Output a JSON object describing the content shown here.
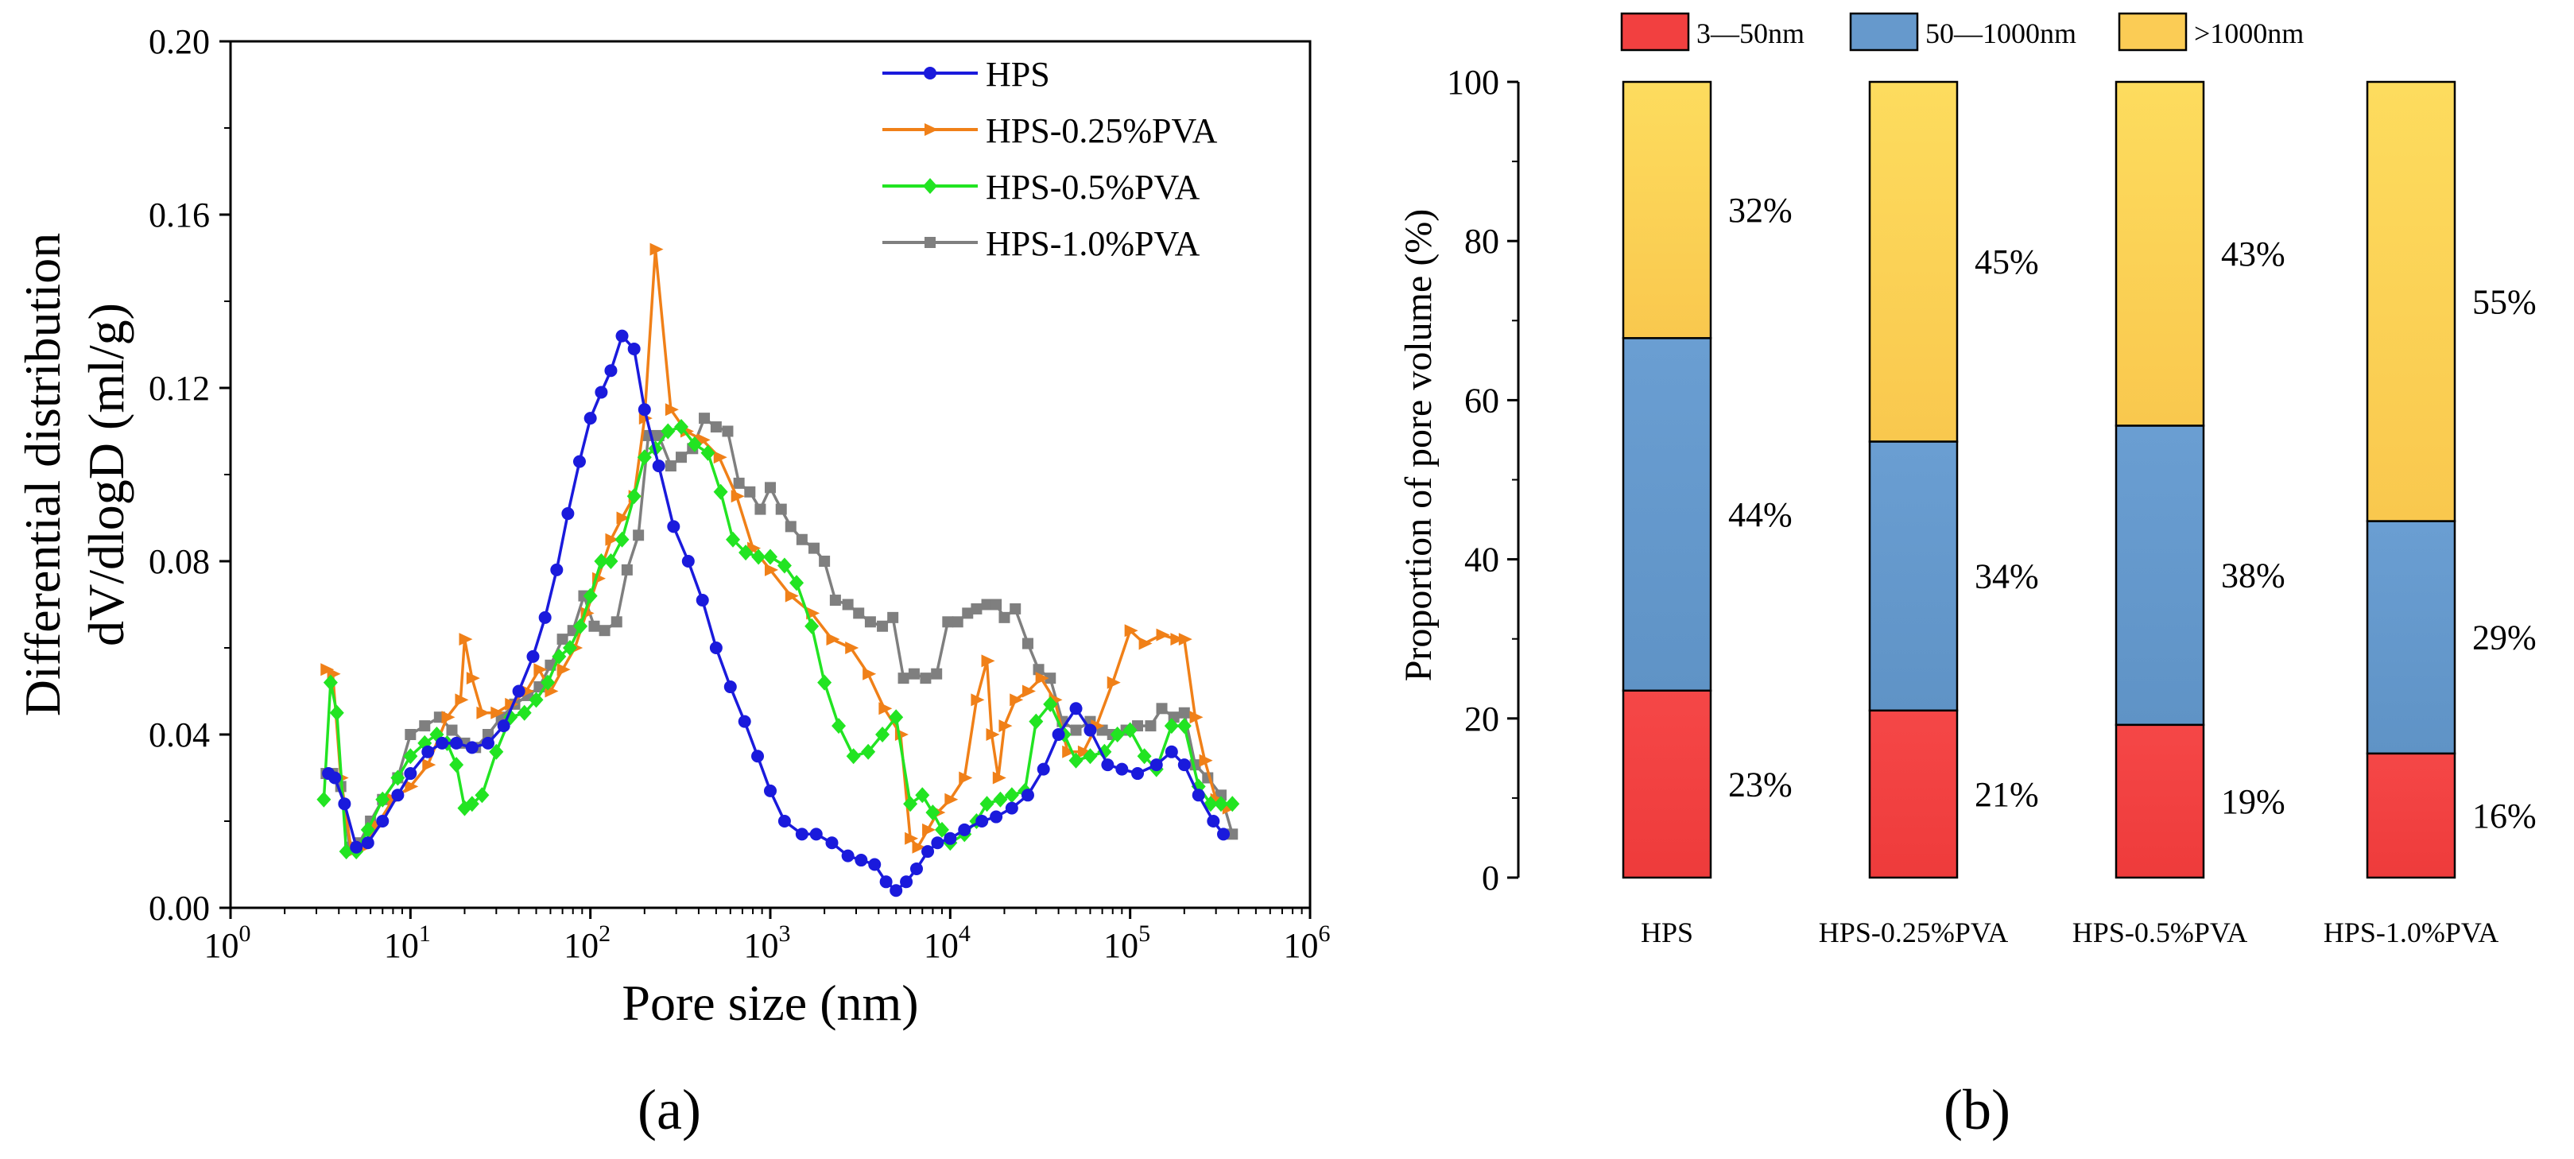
{
  "panel_labels": {
    "a": "(a)",
    "b": "(b)"
  },
  "chart_data": [
    {
      "type": "line",
      "xlabel": "Pore size (nm)",
      "ylabel": [
        "Differential distribution",
        "dV/dlogD (ml/g)"
      ],
      "xscale": "log",
      "xlim": [
        1,
        1000000
      ],
      "ylim": [
        0,
        0.2
      ],
      "xticks": [
        {
          "v": 1,
          "base": "10",
          "exp": "0"
        },
        {
          "v": 10,
          "base": "10",
          "exp": "1"
        },
        {
          "v": 100,
          "base": "10",
          "exp": "2"
        },
        {
          "v": 1000,
          "base": "10",
          "exp": "3"
        },
        {
          "v": 10000,
          "base": "10",
          "exp": "4"
        },
        {
          "v": 100000,
          "base": "10",
          "exp": "5"
        },
        {
          "v": 1000000,
          "base": "10",
          "exp": "6"
        }
      ],
      "yticks": [
        {
          "v": 0,
          "label": "0.00"
        },
        {
          "v": 0.04,
          "label": "0.04"
        },
        {
          "v": 0.08,
          "label": "0.08"
        },
        {
          "v": 0.12,
          "label": "0.12"
        },
        {
          "v": 0.16,
          "label": "0.16"
        },
        {
          "v": 0.2,
          "label": "0.20"
        }
      ],
      "legend_position": "top-right",
      "series": [
        {
          "name": "HPS",
          "color": "#1a1adc",
          "marker": "circle",
          "x": [
            3.5,
            3.8,
            4.3,
            5,
            5.8,
            7,
            8.5,
            10,
            12.5,
            15,
            18,
            22,
            27,
            33,
            40,
            48,
            56,
            65,
            75,
            87,
            100,
            115,
            130,
            150,
            175,
            200,
            240,
            290,
            350,
            420,
            500,
            600,
            720,
            850,
            1000,
            1200,
            1500,
            1800,
            2200,
            2700,
            3200,
            3800,
            4400,
            5000,
            5700,
            6500,
            7500,
            8500,
            10000,
            12000,
            15000,
            18000,
            22000,
            27000,
            33000,
            40000,
            50000,
            60000,
            75000,
            90000,
            110000,
            140000,
            170000,
            200000,
            240000,
            290000,
            330000
          ],
          "values": [
            0.031,
            0.03,
            0.024,
            0.014,
            0.015,
            0.02,
            0.026,
            0.031,
            0.036,
            0.038,
            0.038,
            0.037,
            0.038,
            0.042,
            0.05,
            0.058,
            0.067,
            0.078,
            0.091,
            0.103,
            0.113,
            0.119,
            0.124,
            0.132,
            0.129,
            0.115,
            0.102,
            0.088,
            0.08,
            0.071,
            0.06,
            0.051,
            0.043,
            0.035,
            0.027,
            0.02,
            0.017,
            0.017,
            0.015,
            0.012,
            0.011,
            0.01,
            0.006,
            0.004,
            0.006,
            0.009,
            0.013,
            0.015,
            0.016,
            0.018,
            0.02,
            0.021,
            0.023,
            0.026,
            0.032,
            0.04,
            0.046,
            0.041,
            0.033,
            0.032,
            0.031,
            0.033,
            0.036,
            0.033,
            0.026,
            0.02,
            0.017
          ]
        },
        {
          "name": "HPS-0.25%PVA",
          "color": "#f08018",
          "marker": "triangle-right",
          "x": [
            3.4,
            3.7,
            4.1,
            4.7,
            5.5,
            6.5,
            8,
            10,
            12.5,
            16,
            19,
            20,
            22,
            25,
            30,
            36,
            44,
            52,
            60,
            70,
            82,
            95,
            110,
            130,
            150,
            175,
            200,
            230,
            280,
            340,
            420,
            520,
            650,
            800,
            1000,
            1300,
            1700,
            2200,
            2800,
            3500,
            4300,
            5300,
            6000,
            6600,
            7500,
            8500,
            10000,
            12000,
            14000,
            16000,
            17000,
            18500,
            20000,
            23000,
            27000,
            32000,
            38000,
            45000,
            55000,
            65000,
            80000,
            100000,
            120000,
            150000,
            180000,
            200000,
            230000,
            260000,
            300000,
            350000
          ],
          "values": [
            0.055,
            0.054,
            0.03,
            0.013,
            0.014,
            0.019,
            0.025,
            0.028,
            0.033,
            0.044,
            0.048,
            0.062,
            0.053,
            0.045,
            0.045,
            0.047,
            0.05,
            0.055,
            0.05,
            0.055,
            0.06,
            0.068,
            0.076,
            0.085,
            0.09,
            0.095,
            0.113,
            0.152,
            0.115,
            0.11,
            0.108,
            0.104,
            0.095,
            0.083,
            0.078,
            0.072,
            0.068,
            0.062,
            0.06,
            0.054,
            0.046,
            0.04,
            0.016,
            0.014,
            0.018,
            0.022,
            0.025,
            0.03,
            0.048,
            0.057,
            0.04,
            0.03,
            0.042,
            0.048,
            0.05,
            0.053,
            0.048,
            0.036,
            0.036,
            0.042,
            0.052,
            0.064,
            0.061,
            0.063,
            0.062,
            0.062,
            0.044,
            0.034,
            0.025,
            0.023
          ]
        },
        {
          "name": "HPS-0.5%PVA",
          "color": "#22e422",
          "marker": "diamond",
          "x": [
            3.3,
            3.6,
            3.9,
            4.4,
            5,
            5.8,
            7,
            8.5,
            10,
            12,
            14,
            16,
            18,
            20,
            22,
            25,
            30,
            36,
            43,
            50,
            58,
            67,
            77,
            88,
            100,
            115,
            130,
            150,
            175,
            200,
            230,
            270,
            320,
            380,
            450,
            530,
            620,
            730,
            860,
            1000,
            1200,
            1400,
            1700,
            2000,
            2400,
            2900,
            3500,
            4200,
            5000,
            6000,
            7000,
            8000,
            9000,
            10000,
            12000,
            14000,
            16000,
            19000,
            22000,
            26000,
            30000,
            36000,
            43000,
            50000,
            60000,
            72000,
            85000,
            100000,
            120000,
            140000,
            170000,
            200000,
            240000,
            280000,
            320000,
            370000
          ],
          "values": [
            0.025,
            0.052,
            0.045,
            0.013,
            0.013,
            0.018,
            0.025,
            0.03,
            0.035,
            0.038,
            0.04,
            0.038,
            0.033,
            0.023,
            0.024,
            0.026,
            0.036,
            0.044,
            0.045,
            0.048,
            0.052,
            0.058,
            0.06,
            0.065,
            0.072,
            0.08,
            0.08,
            0.085,
            0.095,
            0.104,
            0.106,
            0.11,
            0.111,
            0.107,
            0.105,
            0.096,
            0.085,
            0.082,
            0.081,
            0.081,
            0.079,
            0.075,
            0.065,
            0.052,
            0.042,
            0.035,
            0.036,
            0.04,
            0.044,
            0.024,
            0.026,
            0.022,
            0.018,
            0.015,
            0.017,
            0.02,
            0.024,
            0.025,
            0.026,
            0.027,
            0.043,
            0.047,
            0.04,
            0.034,
            0.035,
            0.036,
            0.04,
            0.041,
            0.035,
            0.032,
            0.042,
            0.042,
            0.028,
            0.024,
            0.024,
            0.024
          ]
        },
        {
          "name": "HPS-1.0%PVA",
          "color": "#7f7f7f",
          "marker": "square",
          "x": [
            3.4,
            3.7,
            4.1,
            4.6,
            5.2,
            6,
            7,
            8.5,
            10,
            12,
            14.5,
            17,
            20,
            23,
            27,
            32,
            38,
            45,
            52,
            60,
            70,
            80,
            92,
            105,
            120,
            140,
            160,
            185,
            210,
            240,
            280,
            320,
            370,
            430,
            500,
            580,
            670,
            770,
            880,
            1000,
            1150,
            1300,
            1500,
            1750,
            2000,
            2300,
            2700,
            3100,
            3600,
            4200,
            4800,
            5500,
            6300,
            7300,
            8400,
            9700,
            11000,
            12500,
            14000,
            16000,
            18000,
            20000,
            23000,
            27000,
            31000,
            36000,
            42000,
            50000,
            60000,
            70000,
            80000,
            95000,
            110000,
            130000,
            150000,
            175000,
            200000,
            230000,
            270000,
            320000,
            370000
          ],
          "values": [
            0.031,
            0.031,
            0.028,
            0.014,
            0.015,
            0.02,
            0.025,
            0.03,
            0.04,
            0.042,
            0.044,
            0.041,
            0.038,
            0.037,
            0.04,
            0.044,
            0.047,
            0.049,
            0.051,
            0.056,
            0.062,
            0.064,
            0.072,
            0.065,
            0.064,
            0.066,
            0.078,
            0.086,
            0.109,
            0.109,
            0.102,
            0.104,
            0.106,
            0.113,
            0.111,
            0.11,
            0.098,
            0.096,
            0.092,
            0.097,
            0.092,
            0.088,
            0.085,
            0.083,
            0.08,
            0.071,
            0.07,
            0.068,
            0.066,
            0.065,
            0.067,
            0.053,
            0.054,
            0.053,
            0.054,
            0.066,
            0.066,
            0.068,
            0.069,
            0.07,
            0.07,
            0.067,
            0.069,
            0.061,
            0.055,
            0.053,
            0.043,
            0.041,
            0.043,
            0.041,
            0.04,
            0.041,
            0.042,
            0.042,
            0.046,
            0.044,
            0.045,
            0.033,
            0.03,
            0.026,
            0.017
          ]
        }
      ]
    },
    {
      "type": "bar",
      "stacked": true,
      "ylabel": "Proportion of pore volume (%)",
      "ylim": [
        0,
        100
      ],
      "yticks": [
        0,
        20,
        40,
        60,
        80,
        100
      ],
      "categories": [
        "HPS",
        "HPS-0.25%PVA",
        "HPS-0.5%PVA",
        "HPS-1.0%PVA"
      ],
      "legend_position": "top",
      "series": [
        {
          "name": "3—50nm",
          "color": "#f24040",
          "values": [
            23.5,
            21,
            19.2,
            15.6
          ],
          "labels": [
            "23%",
            "21%",
            "19%",
            "16%"
          ]
        },
        {
          "name": "50—1000nm",
          "color": "#6699cc",
          "values": [
            44.3,
            33.8,
            37.6,
            29.2
          ],
          "labels": [
            "44%",
            "34%",
            "38%",
            "29%"
          ]
        },
        {
          "name": ">1000nm",
          "color": "#fbcc55",
          "values": [
            32.2,
            45.2,
            43.2,
            55.2
          ],
          "labels": [
            "32%",
            "45%",
            "43%",
            "55%"
          ]
        }
      ]
    }
  ]
}
